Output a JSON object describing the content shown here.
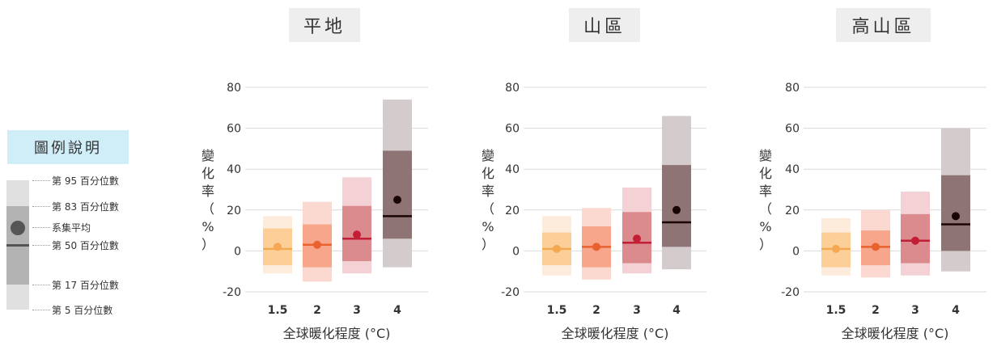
{
  "legend": {
    "title": "圖例說明",
    "labels": {
      "p95": "第 95 百分位數",
      "p83": "第 83 百分位數",
      "mean": "系集平均",
      "p50": "第 50 百分位數",
      "p17": "第 17 百分位數",
      "p5": "第 5 百分位數"
    }
  },
  "colors": {
    "1.5": [
      "#fdebdc",
      "#fccf98",
      "#f5a852"
    ],
    "2": [
      "#fbd9d1",
      "#f7a68c",
      "#e8622f"
    ],
    "3": [
      "#f3d1d4",
      "#db8a8e",
      "#c21e35"
    ],
    "4": [
      "#d4cbcc",
      "#8e7474",
      "#1a0505"
    ]
  },
  "chart_data": [
    {
      "type": "box",
      "title": "平地",
      "xlabel": "全球暖化程度 (°C)",
      "ylabel": "變化率（%）",
      "categories": [
        "1.5",
        "2",
        "3",
        "4"
      ],
      "ylim": [
        -20,
        80
      ],
      "yticks": [
        "80",
        "60",
        "40",
        "20",
        "0",
        "-20"
      ],
      "p5": [
        -11,
        -15,
        -11,
        -8
      ],
      "p17": [
        -7,
        -8,
        -5,
        6
      ],
      "p50": [
        1,
        3,
        6,
        17
      ],
      "mean": [
        2,
        3,
        8,
        25
      ],
      "p83": [
        11,
        13,
        22,
        49
      ],
      "p95": [
        17,
        24,
        36,
        74
      ]
    },
    {
      "type": "box",
      "title": "山區",
      "xlabel": "全球暖化程度 (°C)",
      "ylabel": "變化率（%）",
      "categories": [
        "1.5",
        "2",
        "3",
        "4"
      ],
      "ylim": [
        -20,
        80
      ],
      "yticks": [
        "80",
        "60",
        "40",
        "20",
        "0",
        "-20"
      ],
      "p5": [
        -12,
        -14,
        -11,
        -9
      ],
      "p17": [
        -7,
        -8,
        -6,
        2
      ],
      "p50": [
        1,
        2,
        4,
        14
      ],
      "mean": [
        1,
        2,
        6,
        20
      ],
      "p83": [
        9,
        12,
        19,
        42
      ],
      "p95": [
        17,
        21,
        31,
        66
      ]
    },
    {
      "type": "box",
      "title": "高山區",
      "xlabel": "全球暖化程度 (°C)",
      "ylabel": "變化率（%）",
      "categories": [
        "1.5",
        "2",
        "3",
        "4"
      ],
      "ylim": [
        -20,
        80
      ],
      "yticks": [
        "80",
        "60",
        "40",
        "20",
        "0",
        "-20"
      ],
      "p5": [
        -12,
        -13,
        -12,
        -10
      ],
      "p17": [
        -8,
        -7,
        -6,
        0
      ],
      "p50": [
        1,
        2,
        5,
        13
      ],
      "mean": [
        1,
        2,
        5,
        17
      ],
      "p83": [
        9,
        10,
        18,
        37
      ],
      "p95": [
        16,
        20,
        29,
        60
      ]
    }
  ]
}
